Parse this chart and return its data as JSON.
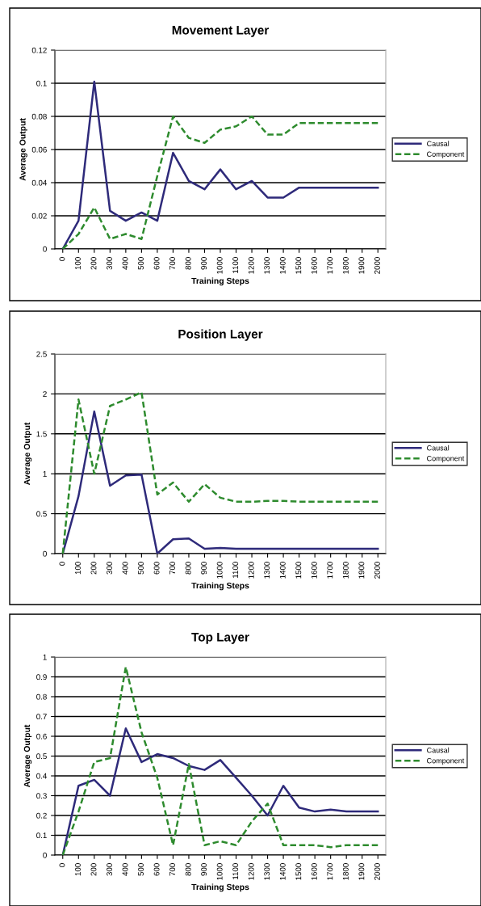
{
  "chart_data": [
    {
      "type": "line",
      "title": "Movement Layer",
      "xlabel": "Training Steps",
      "ylabel": "Average Output",
      "categories": [
        "0",
        "100",
        "200",
        "300",
        "400",
        "500",
        "600",
        "700",
        "800",
        "900",
        "1000",
        "1100",
        "1200",
        "1300",
        "1400",
        "1500",
        "1600",
        "1700",
        "1800",
        "1900",
        "2000"
      ],
      "series": [
        {
          "name": "Causal",
          "color": "#2e2a7a",
          "line_style": "solid",
          "values": [
            0,
            0.017,
            0.101,
            0.023,
            0.017,
            0.022,
            0.017,
            0.058,
            0.041,
            0.036,
            0.048,
            0.036,
            0.041,
            0.031,
            0.031,
            0.037,
            0.037,
            0.037,
            0.037,
            0.037,
            0.037
          ]
        },
        {
          "name": "Component",
          "color": "#2e8b2e",
          "line_style": "dashed",
          "values": [
            0,
            0.009,
            0.025,
            0.006,
            0.009,
            0.006,
            0.044,
            0.08,
            0.067,
            0.064,
            0.072,
            0.074,
            0.08,
            0.069,
            0.069,
            0.076,
            0.076,
            0.076,
            0.076,
            0.076,
            0.076
          ]
        }
      ],
      "ylim": [
        0,
        0.12
      ],
      "yticks": [
        0,
        0.02,
        0.04,
        0.06,
        0.08,
        0.1,
        0.12
      ],
      "grid": "y",
      "legend": "right",
      "marker": "none"
    },
    {
      "type": "line",
      "title": "Position Layer",
      "xlabel": "Training Steps",
      "ylabel": "Average Output",
      "categories": [
        "0",
        "100",
        "200",
        "300",
        "400",
        "500",
        "600",
        "700",
        "800",
        "900",
        "1000",
        "1100",
        "1200",
        "1300",
        "1400",
        "1500",
        "1600",
        "1700",
        "1800",
        "1900",
        "2000"
      ],
      "series": [
        {
          "name": "Causal",
          "color": "#2e2a7a",
          "line_style": "solid",
          "values": [
            0,
            0.72,
            1.78,
            0.85,
            0.98,
            0.99,
            0.0,
            0.18,
            0.19,
            0.06,
            0.07,
            0.06,
            0.06,
            0.06,
            0.06,
            0.06,
            0.06,
            0.06,
            0.06,
            0.06,
            0.06
          ]
        },
        {
          "name": "Component",
          "color": "#2e8b2e",
          "line_style": "dashed",
          "values": [
            0,
            1.93,
            1.0,
            1.85,
            1.93,
            2.02,
            0.74,
            0.89,
            0.65,
            0.87,
            0.7,
            0.65,
            0.65,
            0.66,
            0.66,
            0.65,
            0.65,
            0.65,
            0.65,
            0.65,
            0.65
          ]
        }
      ],
      "ylim": [
        0,
        2.5
      ],
      "yticks": [
        0,
        0.5,
        1,
        1.5,
        2,
        2.5
      ],
      "grid": "y",
      "legend": "right",
      "marker": "none"
    },
    {
      "type": "line",
      "title": "Top Layer",
      "xlabel": "Training Steps",
      "ylabel": "Average Output",
      "categories": [
        "0",
        "100",
        "200",
        "300",
        "400",
        "500",
        "600",
        "700",
        "800",
        "900",
        "1000",
        "1100",
        "1200",
        "1300",
        "1400",
        "1500",
        "1600",
        "1700",
        "1800",
        "1900",
        "2000"
      ],
      "series": [
        {
          "name": "Causal",
          "color": "#2e2a7a",
          "line_style": "solid",
          "values": [
            0,
            0.35,
            0.38,
            0.3,
            0.64,
            0.47,
            0.51,
            0.49,
            0.45,
            0.43,
            0.48,
            0.39,
            0.3,
            0.2,
            0.35,
            0.24,
            0.22,
            0.23,
            0.22,
            0.22,
            0.22
          ]
        },
        {
          "name": "Component",
          "color": "#2e8b2e",
          "line_style": "dashed",
          "values": [
            0,
            0.22,
            0.47,
            0.49,
            0.95,
            0.62,
            0.39,
            0.05,
            0.46,
            0.05,
            0.07,
            0.05,
            0.17,
            0.26,
            0.05,
            0.05,
            0.05,
            0.04,
            0.05,
            0.05,
            0.05
          ]
        }
      ],
      "ylim": [
        0,
        1
      ],
      "yticks": [
        0,
        0.1,
        0.2,
        0.3,
        0.4,
        0.5,
        0.6,
        0.7,
        0.8,
        0.9,
        1
      ],
      "grid": "y",
      "legend": "right",
      "marker": "none"
    }
  ]
}
